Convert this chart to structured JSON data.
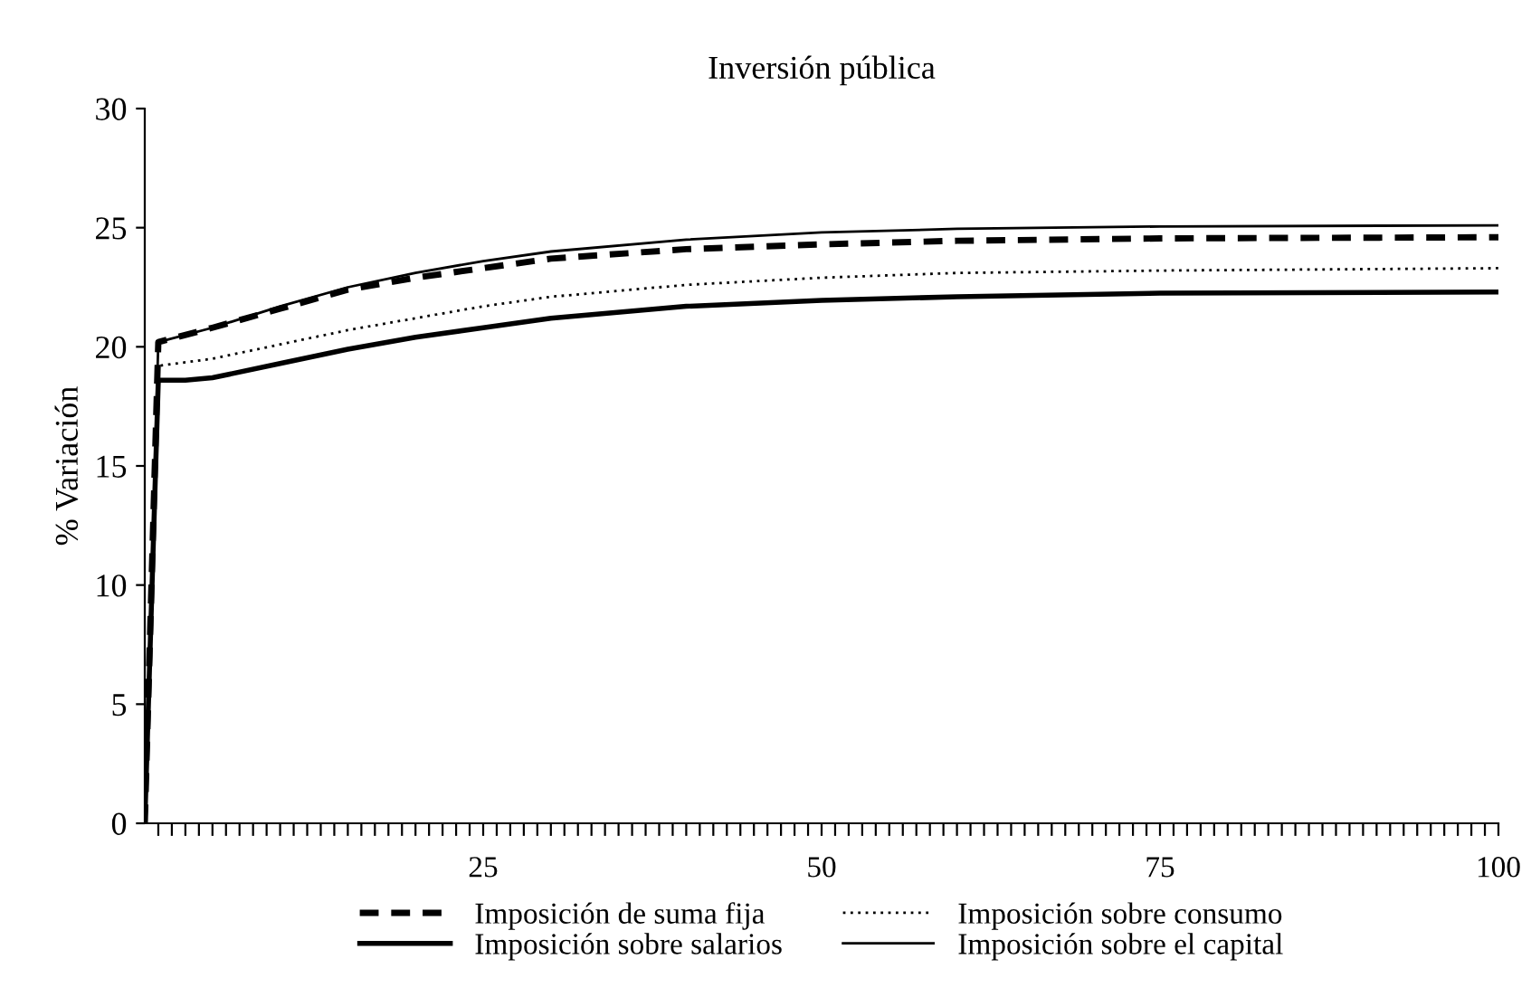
{
  "chart_data": {
    "type": "line",
    "title": "Inversión pública",
    "ylabel": "% Variación",
    "xlim": [
      0,
      100
    ],
    "ylim": [
      0,
      30
    ],
    "yticks": [
      0,
      5,
      10,
      15,
      20,
      25,
      30
    ],
    "xticks": [
      {
        "value": 1,
        "label": null
      },
      {
        "value": 2,
        "label": null
      },
      {
        "value": 3,
        "label": null
      },
      {
        "value": 4,
        "label": null
      },
      {
        "value": 5,
        "label": null
      },
      {
        "value": 6,
        "label": null
      },
      {
        "value": 7,
        "label": null
      },
      {
        "value": 8,
        "label": null
      },
      {
        "value": 9,
        "label": null
      },
      {
        "value": 10,
        "label": null
      },
      {
        "value": 11,
        "label": null
      },
      {
        "value": 12,
        "label": null
      },
      {
        "value": 13,
        "label": null
      },
      {
        "value": 14,
        "label": null
      },
      {
        "value": 15,
        "label": null
      },
      {
        "value": 16,
        "label": null
      },
      {
        "value": 17,
        "label": null
      },
      {
        "value": 18,
        "label": null
      },
      {
        "value": 19,
        "label": null
      },
      {
        "value": 20,
        "label": null
      },
      {
        "value": 21,
        "label": null
      },
      {
        "value": 22,
        "label": null
      },
      {
        "value": 23,
        "label": null
      },
      {
        "value": 24,
        "label": null
      },
      25,
      {
        "value": 26,
        "label": null
      },
      {
        "value": 27,
        "label": null
      },
      {
        "value": 28,
        "label": null
      },
      {
        "value": 29,
        "label": null
      },
      {
        "value": 30,
        "label": null
      },
      {
        "value": 31,
        "label": null
      },
      {
        "value": 32,
        "label": null
      },
      {
        "value": 33,
        "label": null
      },
      {
        "value": 34,
        "label": null
      },
      {
        "value": 35,
        "label": null
      },
      {
        "value": 36,
        "label": null
      },
      {
        "value": 37,
        "label": null
      },
      {
        "value": 38,
        "label": null
      },
      {
        "value": 39,
        "label": null
      },
      {
        "value": 40,
        "label": null
      },
      {
        "value": 41,
        "label": null
      },
      {
        "value": 42,
        "label": null
      },
      {
        "value": 43,
        "label": null
      },
      {
        "value": 44,
        "label": null
      },
      {
        "value": 45,
        "label": null
      },
      {
        "value": 46,
        "label": null
      },
      {
        "value": 47,
        "label": null
      },
      {
        "value": 48,
        "label": null
      },
      {
        "value": 49,
        "label": null
      },
      50,
      {
        "value": 51,
        "label": null
      },
      {
        "value": 52,
        "label": null
      },
      {
        "value": 53,
        "label": null
      },
      {
        "value": 54,
        "label": null
      },
      {
        "value": 55,
        "label": null
      },
      {
        "value": 56,
        "label": null
      },
      {
        "value": 57,
        "label": null
      },
      {
        "value": 58,
        "label": null
      },
      {
        "value": 59,
        "label": null
      },
      {
        "value": 60,
        "label": null
      },
      {
        "value": 61,
        "label": null
      },
      {
        "value": 62,
        "label": null
      },
      {
        "value": 63,
        "label": null
      },
      {
        "value": 64,
        "label": null
      },
      {
        "value": 65,
        "label": null
      },
      {
        "value": 66,
        "label": null
      },
      {
        "value": 67,
        "label": null
      },
      {
        "value": 68,
        "label": null
      },
      {
        "value": 69,
        "label": null
      },
      {
        "value": 70,
        "label": null
      },
      {
        "value": 71,
        "label": null
      },
      {
        "value": 72,
        "label": null
      },
      {
        "value": 73,
        "label": null
      },
      {
        "value": 74,
        "label": null
      },
      75,
      {
        "value": 76,
        "label": null
      },
      {
        "value": 77,
        "label": null
      },
      {
        "value": 78,
        "label": null
      },
      {
        "value": 79,
        "label": null
      },
      {
        "value": 80,
        "label": null
      },
      {
        "value": 81,
        "label": null
      },
      {
        "value": 82,
        "label": null
      },
      {
        "value": 83,
        "label": null
      },
      {
        "value": 84,
        "label": null
      },
      {
        "value": 85,
        "label": null
      },
      {
        "value": 86,
        "label": null
      },
      {
        "value": 87,
        "label": null
      },
      {
        "value": 88,
        "label": null
      },
      {
        "value": 89,
        "label": null
      },
      {
        "value": 90,
        "label": null
      },
      {
        "value": 91,
        "label": null
      },
      {
        "value": 92,
        "label": null
      },
      {
        "value": 93,
        "label": null
      },
      {
        "value": 94,
        "label": null
      },
      {
        "value": 95,
        "label": null
      },
      {
        "value": 96,
        "label": null
      },
      {
        "value": 97,
        "label": null
      },
      {
        "value": 98,
        "label": null
      },
      {
        "value": 99,
        "label": null
      },
      100
    ],
    "grid": false,
    "legend": "bottom",
    "marker": "none",
    "series": [
      {
        "name": "Imposición de suma fija",
        "color": "#000000",
        "line_style": "dashed",
        "x": [
          0,
          1,
          5,
          10,
          15,
          20,
          25,
          30,
          40,
          50,
          60,
          75,
          100
        ],
        "values": [
          0,
          20.2,
          20.8,
          21.6,
          22.4,
          22.9,
          23.3,
          23.7,
          24.1,
          24.3,
          24.45,
          24.55,
          24.6
        ]
      },
      {
        "name": "Imposición sobre consumo",
        "color": "#000000",
        "line_style": "dotted",
        "x": [
          0,
          1,
          5,
          10,
          15,
          20,
          25,
          30,
          40,
          50,
          60,
          75,
          100
        ],
        "values": [
          0,
          19.2,
          19.5,
          20.1,
          20.7,
          21.2,
          21.7,
          22.1,
          22.6,
          22.9,
          23.1,
          23.2,
          23.3
        ]
      },
      {
        "name": "Imposición sobre salarios",
        "color": "#000000",
        "line_style": "solid",
        "x": [
          0,
          1,
          3,
          5,
          10,
          15,
          20,
          25,
          30,
          40,
          50,
          60,
          75,
          100
        ],
        "values": [
          0,
          18.6,
          18.6,
          18.7,
          19.3,
          19.9,
          20.4,
          20.8,
          21.2,
          21.7,
          21.95,
          22.1,
          22.25,
          22.3
        ]
      },
      {
        "name": "Imposición sobre el capital",
        "color": "#000000",
        "line_style": "solid",
        "x": [
          0,
          1,
          5,
          10,
          15,
          20,
          25,
          30,
          40,
          50,
          60,
          75,
          100
        ],
        "values": [
          0,
          20.2,
          20.8,
          21.7,
          22.5,
          23.1,
          23.6,
          24.0,
          24.5,
          24.8,
          24.95,
          25.05,
          25.1
        ]
      }
    ]
  }
}
